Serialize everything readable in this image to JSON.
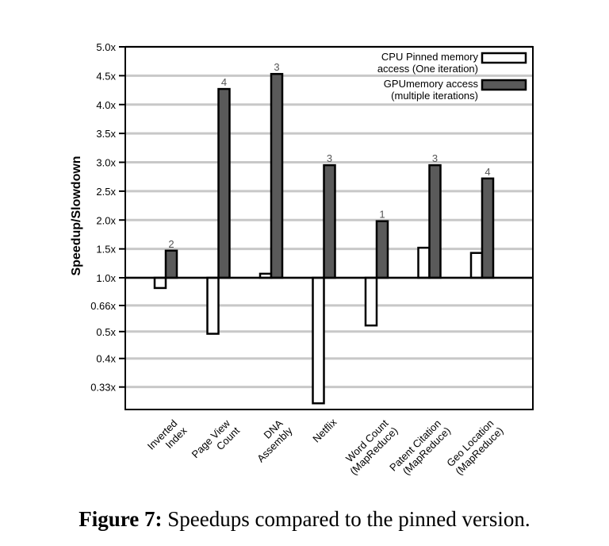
{
  "chart_data": {
    "type": "bar",
    "y_label": "Speedup/Slowdown",
    "categories": [
      [
        "Inverted",
        "Index"
      ],
      [
        "Page View",
        "Count"
      ],
      [
        "DNA",
        "Assembly"
      ],
      [
        "Netflix"
      ],
      [
        "Word Count",
        "(MapReduce)"
      ],
      [
        "Patent Citation",
        "(MapReduce)"
      ],
      [
        "Geo Location",
        "(MapReduce)"
      ]
    ],
    "series": [
      {
        "name": [
          "CPU Pinned memory",
          "access (One iteration)"
        ],
        "color": "#ffffff",
        "values": [
          0.84,
          0.49,
          1.07,
          0.3,
          0.53,
          1.52,
          1.43
        ]
      },
      {
        "name": [
          "GPUmemory access",
          "(multiple iterations)"
        ],
        "color": "#5a5a5a",
        "values": [
          1.47,
          4.27,
          4.53,
          2.95,
          1.98,
          2.95,
          2.72
        ],
        "iterations": [
          2,
          4,
          3,
          3,
          1,
          3,
          4
        ]
      }
    ],
    "ylim": [
      0.29,
      5
    ],
    "yticks": [
      {
        "value": 0.33,
        "label": "0.33x"
      },
      {
        "value": 0.4,
        "label": "0.4x"
      },
      {
        "value": 0.5,
        "label": "0.5x"
      },
      {
        "value": 0.66,
        "label": "0.66x"
      },
      {
        "value": 1,
        "label": "1.0x"
      },
      {
        "value": 1.5,
        "label": "1.5x"
      },
      {
        "value": 2,
        "label": "2.0x"
      },
      {
        "value": 2.5,
        "label": "2.5x"
      },
      {
        "value": 3,
        "label": "3.0x"
      },
      {
        "value": 3.5,
        "label": "3.5x"
      },
      {
        "value": 4,
        "label": "4.0x"
      },
      {
        "value": 4.5,
        "label": "4.5x"
      },
      {
        "value": 5,
        "label": "5.0x"
      }
    ],
    "baseline": 1,
    "grid": true,
    "legend": "upper right"
  },
  "caption": {
    "label": "Figure 7:",
    "text": "Speedups compared to the pinned version."
  }
}
